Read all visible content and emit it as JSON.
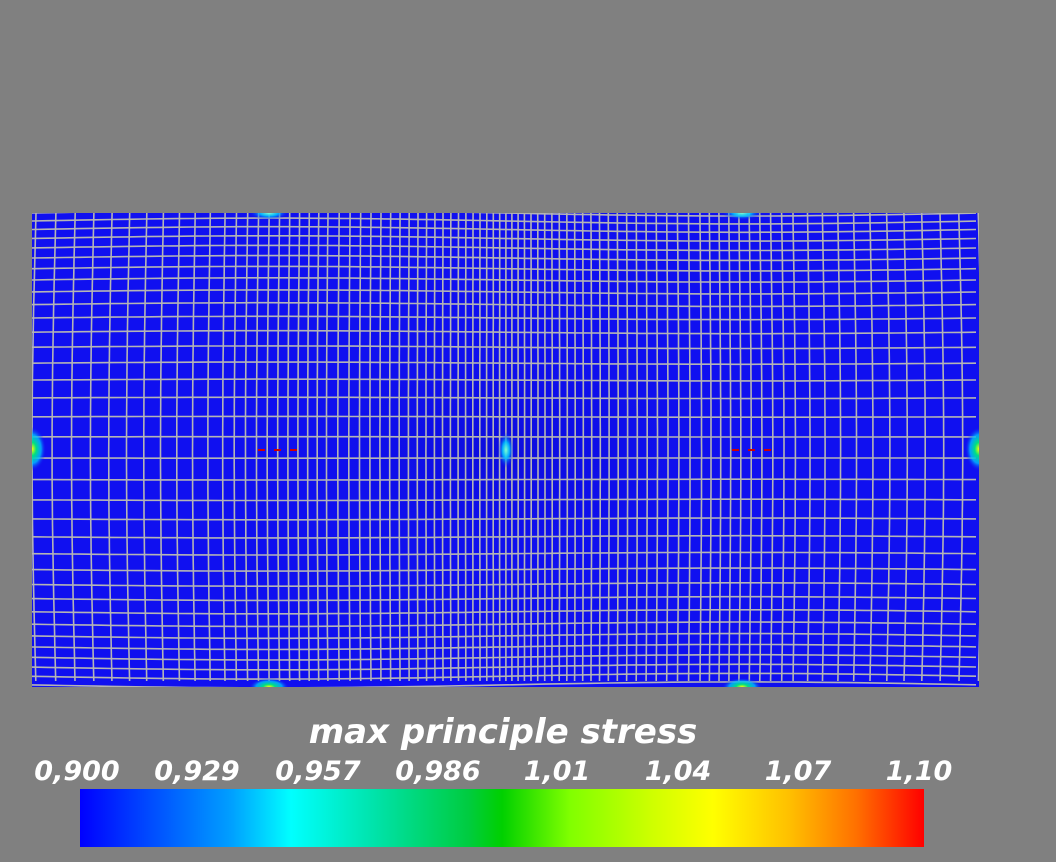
{
  "visualization": {
    "background_color": "#808080",
    "field_color": "#1010f0",
    "mesh_line_color": "#b4b4b4",
    "hotspot_colors": [
      "#00ffff",
      "#00c060",
      "#ffff00",
      "#ff0000"
    ]
  },
  "legend": {
    "title": "max principle stress",
    "ticks": [
      "0,900",
      "0,929",
      "0,957",
      "0,986",
      "1,01",
      "1,04",
      "1,07",
      "1,10"
    ],
    "colormap": [
      "#0000ff",
      "#00ffff",
      "#00d000",
      "#ffff00",
      "#ff0000"
    ]
  }
}
